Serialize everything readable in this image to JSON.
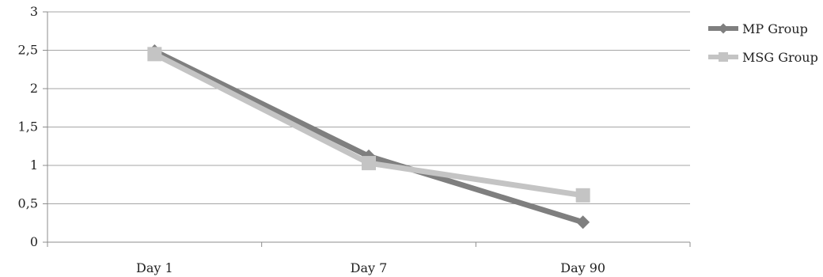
{
  "chart_data": {
    "type": "line",
    "categories": [
      "Day 1",
      "Day 7",
      "Day 90"
    ],
    "y_ticks": [
      "0",
      "0,5",
      "1",
      "1,5",
      "2",
      "2,5",
      "3"
    ],
    "ylim": [
      0,
      3
    ],
    "grid": true,
    "legend_position": "right",
    "series": [
      {
        "name": "MP Group",
        "values": [
          2.49,
          1.12,
          0.26
        ],
        "color": "#7f7f7f",
        "marker": "diamond"
      },
      {
        "name": "MSG Group",
        "values": [
          2.45,
          1.03,
          0.61
        ],
        "color": "#c4c4c4",
        "marker": "square"
      }
    ]
  }
}
